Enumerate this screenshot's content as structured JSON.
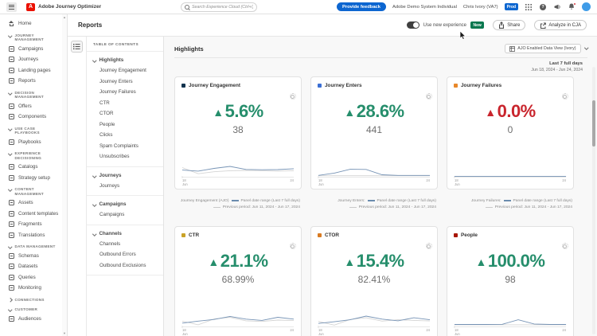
{
  "topbar": {
    "app_name": "Adobe Journey Optimizer",
    "search_placeholder": "Search Experience Cloud (Ctrl+/)",
    "feedback_label": "Provide feedback",
    "org_name": "Adobe Demo System Individual",
    "user_name": "Chris Ivory (VA7)",
    "env_badge": "Prod"
  },
  "sidebar": {
    "home_label": "Home",
    "sections": [
      {
        "label": "JOURNEY MANAGEMENT",
        "collapsed": false,
        "items": [
          {
            "label": "Campaigns",
            "icon": "campaigns-icon"
          },
          {
            "label": "Journeys",
            "icon": "journeys-icon"
          },
          {
            "label": "Landing pages",
            "icon": "landing-pages-icon"
          },
          {
            "label": "Reports",
            "icon": "reports-icon"
          }
        ]
      },
      {
        "label": "DECISION MANAGEMENT",
        "collapsed": false,
        "items": [
          {
            "label": "Offers",
            "icon": "offers-icon"
          },
          {
            "label": "Components",
            "icon": "components-icon"
          }
        ]
      },
      {
        "label": "USE CASE PLAYBOOKS",
        "collapsed": false,
        "items": [
          {
            "label": "Playbooks",
            "icon": "playbooks-icon"
          }
        ]
      },
      {
        "label": "EXPERIENCE DECISIONING",
        "collapsed": false,
        "items": [
          {
            "label": "Catalogs",
            "icon": "catalogs-icon"
          },
          {
            "label": "Strategy setup",
            "icon": "strategy-setup-icon"
          }
        ]
      },
      {
        "label": "CONTENT MANAGEMENT",
        "collapsed": false,
        "items": [
          {
            "label": "Assets",
            "icon": "assets-icon"
          },
          {
            "label": "Content templates",
            "icon": "content-templates-icon"
          },
          {
            "label": "Fragments",
            "icon": "fragments-icon"
          },
          {
            "label": "Translations",
            "icon": "translations-icon"
          }
        ]
      },
      {
        "label": "DATA MANAGEMENT",
        "collapsed": false,
        "items": [
          {
            "label": "Schemas",
            "icon": "schemas-icon"
          },
          {
            "label": "Datasets",
            "icon": "datasets-icon"
          },
          {
            "label": "Queries",
            "icon": "queries-icon"
          },
          {
            "label": "Monitoring",
            "icon": "monitoring-icon"
          }
        ]
      },
      {
        "label": "CONNECTIONS",
        "collapsed": true,
        "items": []
      },
      {
        "label": "CUSTOMER",
        "collapsed": false,
        "items": [
          {
            "label": "Audiences",
            "icon": "audiences-icon"
          }
        ]
      }
    ]
  },
  "page": {
    "title": "Reports",
    "toggle_label": "Use new experience",
    "new_badge": "New",
    "share_label": "Share",
    "analyze_label": "Analyze in CJA"
  },
  "toc": {
    "title": "TABLE OF CONTENTS",
    "groups": [
      {
        "label": "Highlights",
        "items": [
          "Journey Engagement",
          "Journey Enters",
          "Journey Failures",
          "CTR",
          "CTOR",
          "People",
          "Clicks",
          "Spam Complaints",
          "Unsubscribes"
        ]
      },
      {
        "label": "Journeys",
        "items": [
          "Journeys"
        ]
      },
      {
        "label": "Campaigns",
        "items": [
          "Campaigns"
        ]
      },
      {
        "label": "Channels",
        "items": [
          "Channels",
          "Outbound Errors",
          "Outbound Exclusions"
        ]
      }
    ]
  },
  "report": {
    "section_title": "Highlights",
    "dataview_label": "AJO Enabled Data View (Ivory)",
    "range_label": "Last 7 full days",
    "range_dates": "Jun 18, 2024 - Jun 24, 2024",
    "legend_current": "Panel date range (Last 7 full days)",
    "legend_previous": "Previous period: Jun 11, 2024 - Jun 17, 2024",
    "x_left_day": "18",
    "x_left_month": "Jun",
    "x_right": "24"
  },
  "colors": {
    "up_green": "#268E6C",
    "down_red": "#C9252D",
    "spark_current": "#7693b5",
    "spark_previous": "#d4d4d4",
    "legend_current_swatch": "#6b8cae",
    "legend_previous_swatch": "#c9c9c9"
  },
  "cards": [
    {
      "title": "Journey Engagement",
      "dot_color": "#12334e",
      "direction": "up",
      "delta": "5.6%",
      "trend_color": "#268E6C",
      "value": "38",
      "legend_prefix": "Journey Engagement (AJO)"
    },
    {
      "title": "Journey Enters",
      "dot_color": "#3b6fd4",
      "direction": "up",
      "delta": "28.6%",
      "trend_color": "#268E6C",
      "value": "441",
      "legend_prefix": "Journey Enters:"
    },
    {
      "title": "Journey Failures",
      "dot_color": "#e8882a",
      "direction": "up",
      "delta": "0.0%",
      "trend_color": "#C9252D",
      "value": "0",
      "legend_prefix": "Journey Failures:"
    },
    {
      "title": "CTR",
      "dot_color": "#c9a227",
      "direction": "up",
      "delta": "21.1%",
      "trend_color": "#268E6C",
      "value": "68.99%"
    },
    {
      "title": "CTOR",
      "dot_color": "#d97b22",
      "direction": "up",
      "delta": "15.4%",
      "trend_color": "#268E6C",
      "value": "82.41%"
    },
    {
      "title": "People",
      "dot_color": "#a81705",
      "direction": "up",
      "delta": "100.0%",
      "trend_color": "#268E6C",
      "value": "98"
    }
  ],
  "chart_data": [
    {
      "type": "line",
      "metric": "Journey Engagement",
      "x_left": "18 Jun",
      "x_right": "24",
      "series": [
        {
          "name": "Panel date range (Last 7 full days)",
          "values": [
            40,
            34,
            50,
            62,
            44,
            42,
            43,
            48
          ]
        },
        {
          "name": "Previous period: Jun 11, 2024 - Jun 17, 2024",
          "values": [
            55,
            18,
            30,
            36,
            38,
            36,
            34,
            36
          ]
        }
      ]
    },
    {
      "type": "line",
      "metric": "Journey Enters",
      "x_left": "18 Jun",
      "x_right": "24",
      "series": [
        {
          "name": "Panel date range (Last 7 full days)",
          "values": [
            8,
            22,
            45,
            44,
            12,
            8,
            8,
            8
          ]
        },
        {
          "name": "Previous period: Jun 11, 2024 - Jun 17, 2024",
          "values": [
            6,
            6,
            6,
            6,
            6,
            6,
            6,
            6
          ]
        }
      ]
    },
    {
      "type": "line",
      "metric": "Journey Failures",
      "x_left": "18 Jun",
      "x_right": "24",
      "series": [
        {
          "name": "Panel date range (Last 7 full days)",
          "values": [
            3,
            3,
            3,
            3,
            3,
            3,
            3,
            3
          ]
        },
        {
          "name": "Previous period: Jun 11, 2024 - Jun 17, 2024",
          "values": [
            3,
            3,
            3,
            3,
            3,
            3,
            3,
            3
          ]
        }
      ]
    },
    {
      "type": "line",
      "metric": "CTR",
      "x_left": "18 Jun",
      "x_right": "24",
      "series": [
        {
          "name": "Panel date range (Last 7 full days)",
          "values": [
            20,
            32,
            42,
            60,
            44,
            36,
            55,
            44
          ]
        },
        {
          "name": "Previous period: Jun 11, 2024 - Jun 17, 2024",
          "values": [
            32,
            10,
            45,
            55,
            34,
            30,
            38,
            35
          ]
        }
      ]
    },
    {
      "type": "line",
      "metric": "CTOR",
      "x_left": "18 Jun",
      "x_right": "24",
      "series": [
        {
          "name": "Panel date range (Last 7 full days)",
          "values": [
            18,
            28,
            40,
            62,
            44,
            34,
            52,
            40
          ]
        },
        {
          "name": "Previous period: Jun 11, 2024 - Jun 17, 2024",
          "values": [
            30,
            8,
            42,
            52,
            32,
            40,
            36,
            33
          ]
        }
      ]
    },
    {
      "type": "line",
      "metric": "People",
      "x_left": "18 Jun",
      "x_right": "24",
      "series": [
        {
          "name": "Panel date range (Last 7 full days)",
          "values": [
            12,
            12,
            12,
            13,
            40,
            15,
            12,
            12
          ]
        },
        {
          "name": "Previous period: Jun 11, 2024 - Jun 17, 2024",
          "values": [
            10,
            10,
            10,
            10,
            10,
            10,
            10,
            10
          ]
        }
      ]
    }
  ]
}
